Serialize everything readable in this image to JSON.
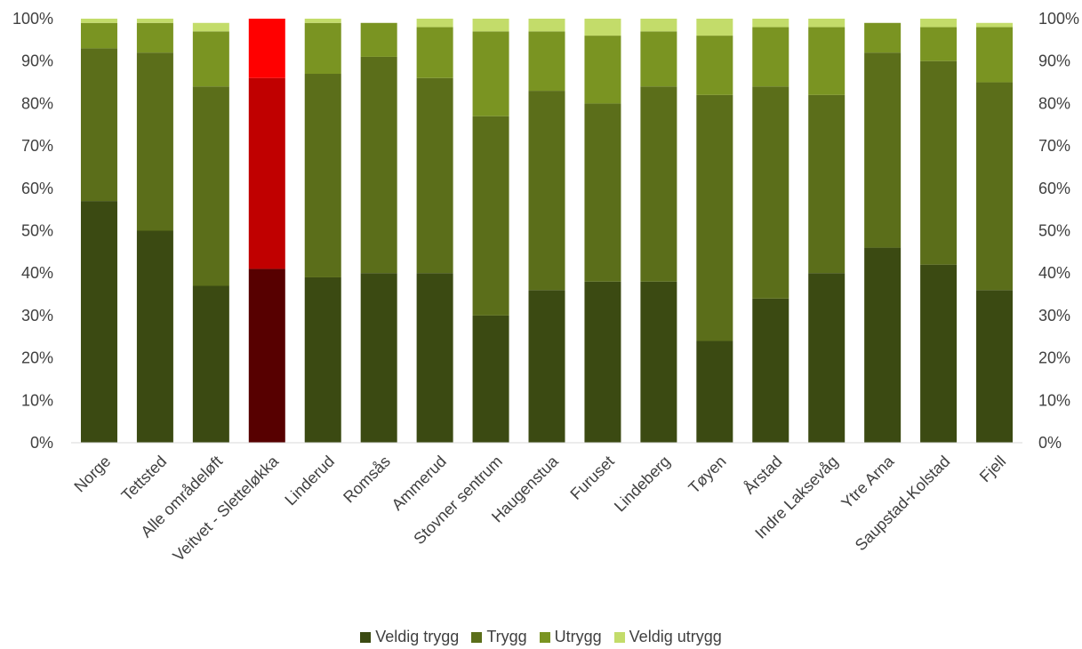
{
  "chart_data": {
    "type": "bar",
    "stacked": true,
    "categories": [
      "Norge",
      "Tettsted",
      "Alle områdeløft",
      "Veitvet - Sletteløkka",
      "Linderud",
      "Romsås",
      "Ammerud",
      "Stovner sentrum",
      "Haugenstua",
      "Furuset",
      "Lindeberg",
      "Tøyen",
      "Årstad",
      "Indre Laksevåg",
      "Ytre Arna",
      "Saupstad-Kolstad",
      "Fjell"
    ],
    "series": [
      {
        "name": "Veldig trygg",
        "color": "#3b4a12",
        "values": [
          57,
          50,
          37,
          41,
          39,
          40,
          40,
          30,
          36,
          38,
          38,
          24,
          34,
          40,
          46,
          42,
          36
        ]
      },
      {
        "name": "Trygg",
        "color": "#5b6e1a",
        "values": [
          36,
          42,
          47,
          45,
          48,
          51,
          46,
          47,
          47,
          42,
          46,
          58,
          50,
          42,
          46,
          48,
          49
        ]
      },
      {
        "name": "Utrygg",
        "color": "#7a9422",
        "values": [
          6,
          7,
          13,
          14,
          12,
          8,
          12,
          20,
          14,
          16,
          13,
          14,
          14,
          16,
          7,
          8,
          13
        ]
      },
      {
        "name": "Veldig utrygg",
        "color": "#c3dc6a",
        "values": [
          1,
          1,
          2,
          0,
          1,
          0,
          2,
          3,
          3,
          4,
          3,
          4,
          2,
          2,
          0,
          2,
          1
        ]
      }
    ],
    "highlight": {
      "category": "Veitvet - Sletteløkka",
      "colors": [
        "#570000",
        "#c00000",
        "#ff0000",
        "#ff6666"
      ]
    },
    "y_ticks": [
      "0%",
      "10%",
      "20%",
      "30%",
      "40%",
      "50%",
      "60%",
      "70%",
      "80%",
      "90%",
      "100%"
    ],
    "ylim": [
      0,
      100
    ],
    "grid": false,
    "legend_position": "bottom"
  }
}
